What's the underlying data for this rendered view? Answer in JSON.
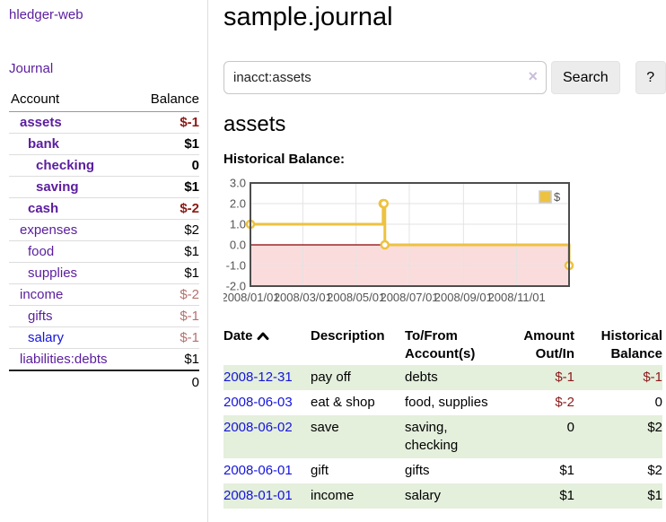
{
  "app": {
    "title": "hledger-web"
  },
  "colors": {
    "link_purple": "#5a1d9e",
    "link_blue": "#1414dc",
    "negative_strong": "#8b1a14",
    "negative_soft": "#b5716e",
    "row_green": "#e4efdc",
    "series_gold": "#edc240"
  },
  "sidebar": {
    "journal_link": "Journal",
    "accounts": {
      "headers": {
        "account": "Account",
        "balance": "Balance"
      },
      "rows": [
        {
          "name": "assets",
          "balance": "$-1",
          "level": 0,
          "bold": true,
          "neg": "neg-strong"
        },
        {
          "name": "bank",
          "balance": "$1",
          "level": 1,
          "bold": true
        },
        {
          "name": "checking",
          "balance": "0",
          "level": 2,
          "bold": true
        },
        {
          "name": "saving",
          "balance": "$1",
          "level": 2,
          "bold": true
        },
        {
          "name": "cash",
          "balance": "$-2",
          "level": 1,
          "bold": true,
          "neg": "neg-strong"
        },
        {
          "name": "expenses",
          "balance": "$2",
          "level": 0
        },
        {
          "name": "food",
          "balance": "$1",
          "level": 1
        },
        {
          "name": "supplies",
          "balance": "$1",
          "level": 1
        },
        {
          "name": "income",
          "balance": "$-2",
          "level": 0,
          "neg": "neg-soft"
        },
        {
          "name": "gifts",
          "balance": "$-1",
          "level": 1,
          "neg": "neg-soft"
        },
        {
          "name": "salary",
          "balance": "$-1",
          "level": 1,
          "blue": true,
          "neg": "neg-soft"
        },
        {
          "name": "liabilities:debts",
          "balance": "$1",
          "level": 0
        }
      ],
      "total": "0"
    }
  },
  "page": {
    "title": "sample.journal"
  },
  "search": {
    "value": "inacct:assets",
    "clear_icon": "×",
    "button_label": "Search",
    "help_label": "?"
  },
  "account_view": {
    "heading": "assets",
    "chart_title": "Historical Balance:"
  },
  "chart_data": {
    "type": "line",
    "step": true,
    "title": "Historical Balance:",
    "x_range": [
      "2008-01-01",
      "2008-12-31"
    ],
    "ylim": [
      -2,
      3
    ],
    "grid": true,
    "y_ticks": [
      {
        "v": 3,
        "label": "3.0"
      },
      {
        "v": 2,
        "label": "2.0"
      },
      {
        "v": 1,
        "label": "1.0"
      },
      {
        "v": 0,
        "label": "0.0"
      },
      {
        "v": -1,
        "label": "-1.0"
      },
      {
        "v": -2,
        "label": "-2.0"
      }
    ],
    "x_ticks": [
      {
        "date": "2008-01-01",
        "label": "2008/01/01"
      },
      {
        "date": "2008-03-01",
        "label": "2008/03/01"
      },
      {
        "date": "2008-05-01",
        "label": "2008/05/01"
      },
      {
        "date": "2008-07-01",
        "label": "2008/07/01"
      },
      {
        "date": "2008-09-01",
        "label": "2008/09/01"
      },
      {
        "date": "2008-11-01",
        "label": "2008/11/01"
      }
    ],
    "series": [
      {
        "name": "$",
        "color": "#edc240",
        "points": [
          [
            "2008-01-01",
            1
          ],
          [
            "2008-06-01",
            2
          ],
          [
            "2008-06-02",
            2
          ],
          [
            "2008-06-03",
            0
          ],
          [
            "2008-12-31",
            -1
          ]
        ]
      }
    ],
    "legend": {
      "position": "top-right",
      "entries": [
        {
          "label": "$",
          "color": "#edc240"
        }
      ]
    },
    "negative_region_fill": "#fbdcdc",
    "zero_line_color": "#8b0000",
    "axis_text_color": "#545454"
  },
  "register": {
    "headers": {
      "date": "Date",
      "description": "Description",
      "accounts": "To/From Account(s)",
      "amount": "Amount Out/In",
      "balance": "Historical Balance"
    },
    "sort": {
      "column": "date",
      "direction": "ascending"
    },
    "rows": [
      {
        "date": "2008-12-31",
        "description": "pay off",
        "accounts": "debts",
        "amount": "$-1",
        "amount_neg": true,
        "balance": "$-1",
        "balance_neg": true
      },
      {
        "date": "2008-06-03",
        "description": "eat & shop",
        "accounts": "food, supplies",
        "amount": "$-2",
        "amount_neg": true,
        "balance": "0"
      },
      {
        "date": "2008-06-02",
        "description": "save",
        "accounts": "saving, checking",
        "amount": "0",
        "balance": "$2"
      },
      {
        "date": "2008-06-01",
        "description": "gift",
        "accounts": "gifts",
        "amount": "$1",
        "balance": "$2"
      },
      {
        "date": "2008-01-01",
        "description": "income",
        "accounts": "salary",
        "amount": "$1",
        "balance": "$1"
      }
    ]
  }
}
